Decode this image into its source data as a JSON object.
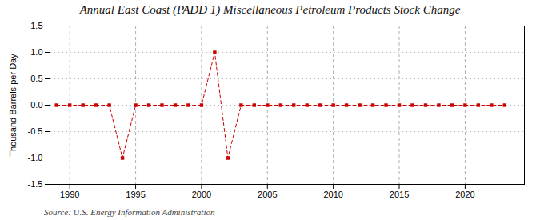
{
  "chart_data": {
    "type": "line",
    "title": "Annual East Coast (PADD 1) Miscellaneous Petroleum Products Stock Change",
    "ylabel": "Thousand Barrels per Day",
    "source": "Source: U.S. Energy Information Administration",
    "x": [
      1989,
      1990,
      1991,
      1992,
      1993,
      1994,
      1995,
      1996,
      1997,
      1998,
      1999,
      2000,
      2001,
      2002,
      2003,
      2004,
      2005,
      2006,
      2007,
      2008,
      2009,
      2010,
      2011,
      2012,
      2013,
      2014,
      2015,
      2016,
      2017,
      2018,
      2019,
      2020,
      2021,
      2022,
      2023
    ],
    "values": [
      0.0,
      0.0,
      0.0,
      0.0,
      0.0,
      -1.0,
      0.0,
      0.0,
      0.0,
      0.0,
      0.0,
      0.0,
      1.0,
      -1.0,
      0.0,
      0.0,
      0.0,
      0.0,
      0.0,
      0.0,
      0.0,
      0.0,
      0.0,
      0.0,
      0.0,
      0.0,
      0.0,
      0.0,
      0.0,
      0.0,
      0.0,
      0.0,
      0.0,
      0.0,
      0.0
    ],
    "color": "#cc0000",
    "marker": "square",
    "line_style": "dashed",
    "xlim": [
      1988.5,
      2024.5
    ],
    "xticks": [
      1990,
      1995,
      2000,
      2005,
      2010,
      2015,
      2020
    ],
    "ylim": [
      -1.5,
      1.5
    ],
    "yticks": [
      -1.5,
      {
        "value": -1,
        "label": "-1.0"
      },
      -0.5,
      {
        "value": 0,
        "label": "0.0"
      },
      0.5,
      {
        "value": 1,
        "label": "1.0"
      },
      1.5
    ],
    "grid": true
  }
}
